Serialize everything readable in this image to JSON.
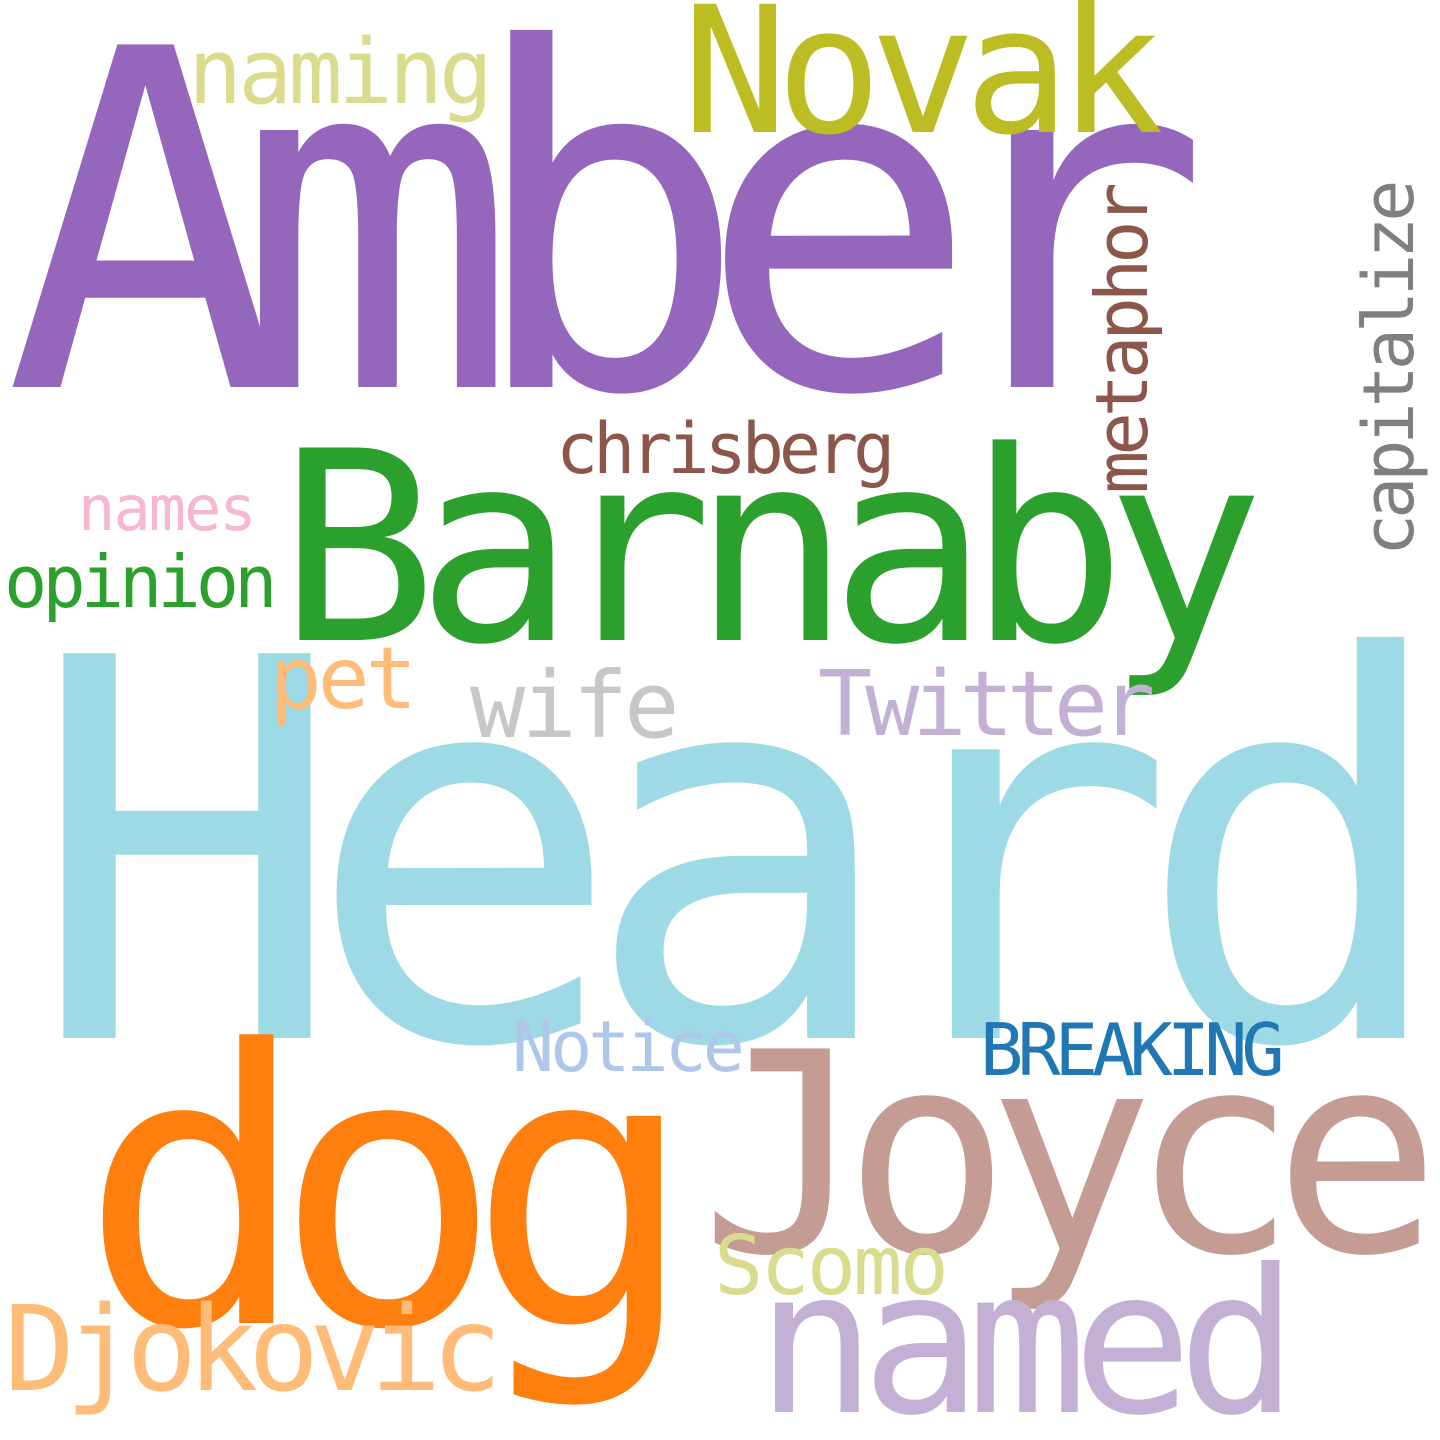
{
  "words": [
    {
      "id": "amber",
      "text": "Amber",
      "color": "#9467bd",
      "vertical": false
    },
    {
      "id": "heard",
      "text": "Heard",
      "color": "#9edae5",
      "vertical": false
    },
    {
      "id": "barnaby",
      "text": "Barnaby",
      "color": "#2ca02c",
      "vertical": false
    },
    {
      "id": "dog",
      "text": "dog",
      "color": "#ff7f0e",
      "vertical": false
    },
    {
      "id": "joyce",
      "text": "Joyce",
      "color": "#c49c94",
      "vertical": false
    },
    {
      "id": "novak",
      "text": "Novak",
      "color": "#bcbd22",
      "vertical": false
    },
    {
      "id": "named",
      "text": "named",
      "color": "#c5b0d5",
      "vertical": false
    },
    {
      "id": "djokovic",
      "text": "Djokovic",
      "color": "#ffbb78",
      "vertical": false
    },
    {
      "id": "naming",
      "text": "naming",
      "color": "#dbdb8d",
      "vertical": false
    },
    {
      "id": "metaphor",
      "text": "metaphor",
      "color": "#8c564b",
      "vertical": true
    },
    {
      "id": "capitalize",
      "text": "capitalize",
      "color": "#7f7f7f",
      "vertical": true
    },
    {
      "id": "chrisberg",
      "text": "chrisberg",
      "color": "#8c564b",
      "vertical": false
    },
    {
      "id": "names",
      "text": "names",
      "color": "#f7b6d2",
      "vertical": false
    },
    {
      "id": "opinion",
      "text": "opinion",
      "color": "#2ca02c",
      "vertical": false
    },
    {
      "id": "pet",
      "text": "pet",
      "color": "#ffbb78",
      "vertical": false
    },
    {
      "id": "wife",
      "text": "wife",
      "color": "#c7c7c7",
      "vertical": false
    },
    {
      "id": "twitter",
      "text": "Twitter",
      "color": "#c5b0d5",
      "vertical": false
    },
    {
      "id": "notice",
      "text": "Notice",
      "color": "#aec7e8",
      "vertical": false
    },
    {
      "id": "breaking",
      "text": "BREAKING",
      "color": "#1f77b4",
      "vertical": false
    },
    {
      "id": "scomo",
      "text": "Scomo",
      "color": "#dbdb8d",
      "vertical": false
    }
  ]
}
